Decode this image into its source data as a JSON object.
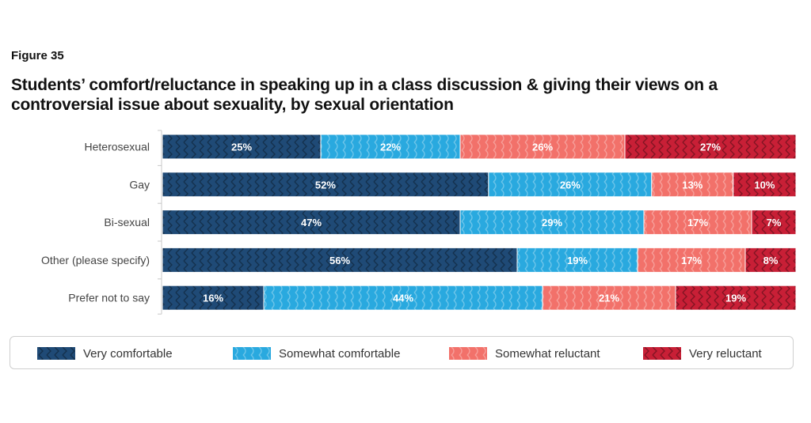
{
  "figure_label": "Figure 35",
  "chart_data": {
    "type": "bar",
    "orientation": "horizontal",
    "stacked": true,
    "title": "Students’ comfort/reluctance in speaking up in a class discussion & giving their views on a controversial issue about sexuality, by sexual orientation",
    "categories": [
      "Heterosexual",
      "Gay",
      "Bi-sexual",
      "Other (please specify)",
      "Prefer not to say"
    ],
    "series": [
      {
        "name": "Very comfortable",
        "color": "#1f4a76",
        "values": [
          25,
          52,
          47,
          56,
          16
        ],
        "labels": [
          "25%",
          "52%",
          "47%",
          "56%",
          "16%"
        ]
      },
      {
        "name": "Somewhat comfortable",
        "color": "#29a9df",
        "values": [
          22,
          26,
          29,
          19,
          44
        ],
        "labels": [
          "22%",
          "26%",
          "29%",
          "19%",
          "44%"
        ]
      },
      {
        "name": "Somewhat reluctant",
        "color": "#f2716a",
        "values": [
          26,
          13,
          17,
          17,
          21
        ],
        "labels": [
          "26%",
          "13%",
          "17%",
          "17%",
          "21%"
        ]
      },
      {
        "name": "Very reluctant",
        "color": "#c81f36",
        "values": [
          27,
          10,
          7,
          8,
          19
        ],
        "labels": [
          "27%",
          "10%",
          "7%",
          "8%",
          "19%"
        ]
      }
    ],
    "legend_position": "bottom",
    "grid": false
  }
}
